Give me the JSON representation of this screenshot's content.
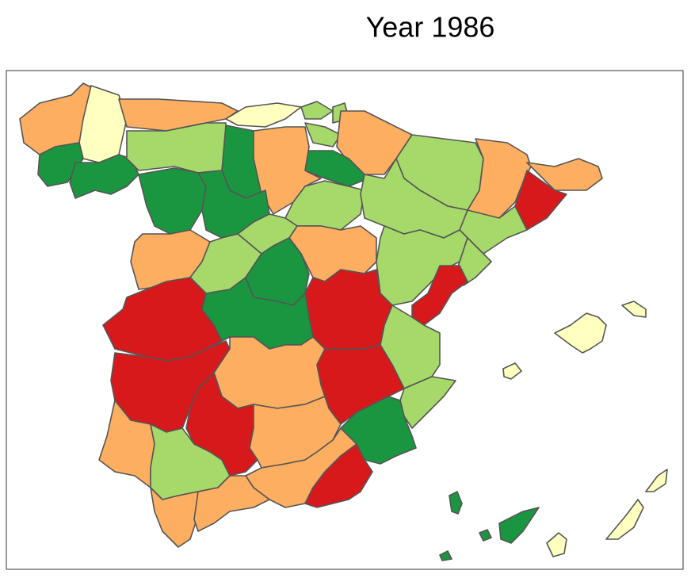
{
  "title": "Year 1986"
}
